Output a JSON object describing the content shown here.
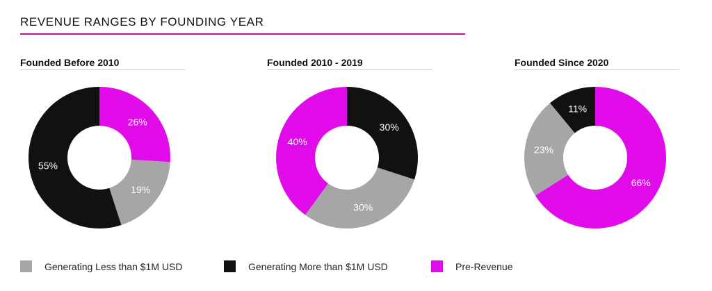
{
  "title": "REVENUE RANGES BY FOUNDING YEAR",
  "colors": {
    "accent": "#c70aa0",
    "gray": "#a6a6a6",
    "black": "#111111",
    "magenta": "#e10ae8"
  },
  "legend": [
    {
      "label": "Generating Less than $1M USD",
      "color": "#a6a6a6"
    },
    {
      "label": "Generating More than $1M USD",
      "color": "#111111"
    },
    {
      "label": "Pre-Revenue",
      "color": "#e10ae8"
    }
  ],
  "chart_data": [
    {
      "type": "pie",
      "title": "Founded Before 2010",
      "slices": [
        {
          "name": "Pre-Revenue",
          "value": 26,
          "label": "26%",
          "color": "#e10ae8"
        },
        {
          "name": "Generating Less than $1M USD",
          "value": 19,
          "label": "19%",
          "color": "#a6a6a6"
        },
        {
          "name": "Generating More than $1M USD",
          "value": 55,
          "label": "55%",
          "color": "#111111"
        }
      ]
    },
    {
      "type": "pie",
      "title": "Founded 2010 - 2019",
      "slices": [
        {
          "name": "Generating More than $1M USD",
          "value": 30,
          "label": "30%",
          "color": "#111111"
        },
        {
          "name": "Generating Less than $1M USD",
          "value": 30,
          "label": "30%",
          "color": "#a6a6a6"
        },
        {
          "name": "Pre-Revenue",
          "value": 40,
          "label": "40%",
          "color": "#e10ae8"
        }
      ]
    },
    {
      "type": "pie",
      "title": "Founded Since 2020",
      "slices": [
        {
          "name": "Pre-Revenue",
          "value": 66,
          "label": "66%",
          "color": "#e10ae8"
        },
        {
          "name": "Generating Less than $1M USD",
          "value": 23,
          "label": "23%",
          "color": "#a6a6a6"
        },
        {
          "name": "Generating More than $1M USD",
          "value": 11,
          "label": "11%",
          "color": "#111111"
        }
      ]
    }
  ]
}
